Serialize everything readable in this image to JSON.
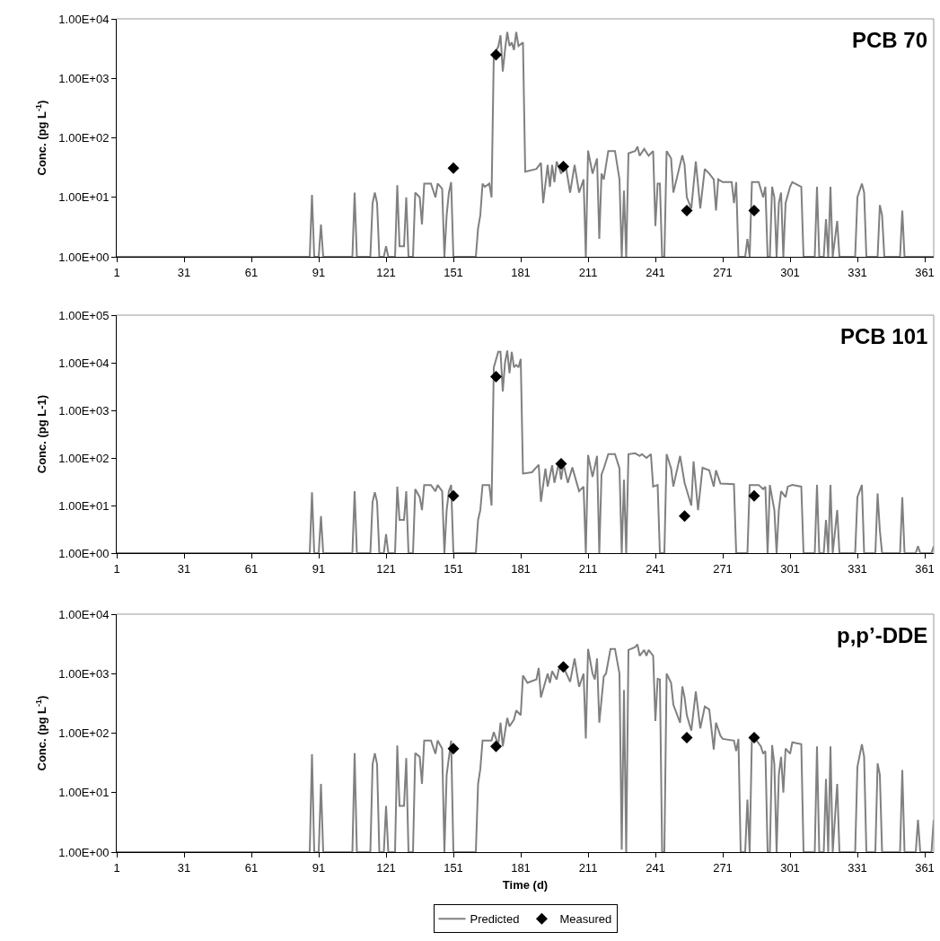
{
  "chart_data": [
    {
      "type": "line",
      "title": "PCB 70",
      "ylabel": "Conc. (pg L$^{-1}$)",
      "log": "y",
      "legend": false,
      "grid": false,
      "xlim": [
        1,
        365
      ],
      "xticks": [
        1,
        31,
        61,
        91,
        121,
        151,
        181,
        211,
        241,
        271,
        301,
        331,
        361
      ],
      "ylim": [
        1,
        10000
      ],
      "yticks": [
        {
          "value": 1,
          "label": "1.00E+00"
        },
        {
          "value": 10,
          "label": "1.00E+01"
        },
        {
          "value": 100,
          "label": "1.00E+02"
        },
        {
          "value": 1000,
          "label": "1.00E+03"
        },
        {
          "value": 10000,
          "label": "1.00E+04"
        }
      ],
      "series": [
        {
          "type": "line",
          "color": "#808080",
          "marker": "none",
          "x": [
            1,
            87,
            88,
            89,
            91,
            92,
            93,
            106,
            107,
            108,
            114,
            115,
            116,
            117,
            118,
            120,
            121,
            122,
            125,
            126,
            127,
            129,
            130,
            131,
            133,
            134,
            136,
            137,
            138,
            141,
            143,
            144,
            146,
            147,
            148,
            149,
            150,
            151,
            161,
            162,
            163,
            164,
            165,
            167,
            168,
            169,
            171,
            172,
            173,
            174,
            175,
            176,
            177,
            178,
            179,
            180,
            182,
            183,
            188,
            190,
            191,
            193,
            194,
            195,
            196,
            197,
            199,
            201,
            203,
            205,
            207,
            209,
            210,
            211,
            213,
            215,
            216,
            217,
            218,
            220,
            223,
            225,
            226,
            227,
            228,
            229,
            232,
            233,
            234,
            236,
            238,
            240,
            241,
            242,
            243,
            244,
            245,
            246,
            248,
            249,
            253,
            254,
            255,
            257,
            259,
            261,
            263,
            265,
            267,
            268,
            269,
            271,
            275,
            276,
            277,
            278,
            281,
            282,
            283,
            284,
            287,
            289,
            290,
            291,
            292,
            293,
            294,
            295,
            296,
            297,
            298,
            299,
            301,
            302,
            306,
            307,
            312,
            313,
            314,
            316,
            317,
            318,
            319,
            320,
            322,
            323,
            330,
            331,
            333,
            334,
            335,
            340,
            341,
            342,
            343,
            350,
            351,
            352,
            365
          ],
          "values": [
            1,
            1,
            11,
            1,
            1,
            3.5,
            1,
            1,
            12,
            1,
            1,
            8,
            12,
            8,
            1,
            1,
            1.5,
            1,
            1,
            16,
            1.5,
            1.5,
            10,
            1,
            1,
            12,
            10,
            3.5,
            17,
            17,
            10,
            17,
            14,
            1,
            5,
            12,
            18,
            1,
            1,
            3,
            5,
            17,
            15,
            17,
            10,
            2500,
            3400,
            5300,
            1300,
            3000,
            6000,
            3500,
            4000,
            3000,
            6000,
            3500,
            4000,
            27,
            30,
            38,
            8,
            35,
            15,
            35,
            18,
            40,
            25,
            35,
            12,
            35,
            12,
            20,
            1,
            61,
            25,
            45,
            2,
            25,
            20,
            60,
            60,
            20,
            1,
            13,
            1,
            55,
            60,
            71,
            50,
            65,
            50,
            60,
            3.3,
            17,
            17,
            1,
            1,
            60,
            45,
            12,
            51,
            35,
            10,
            6.5,
            40,
            6.5,
            30,
            25,
            20,
            6,
            20,
            18,
            18,
            8,
            18,
            1,
            1,
            2,
            1,
            18,
            18,
            10,
            15,
            1,
            1,
            15,
            10,
            1,
            8,
            12,
            1,
            8,
            15,
            18,
            15,
            1,
            1,
            15,
            1,
            1,
            4.3,
            1,
            15,
            1,
            4,
            1,
            1,
            10,
            17,
            12,
            1,
            1,
            7.4,
            5,
            1,
            1,
            6,
            1,
            1
          ]
        },
        {
          "type": "scatter",
          "color": "#000000",
          "marker": "diamond",
          "x": [
            151,
            170,
            200,
            255,
            285
          ],
          "values": [
            31,
            2500,
            33,
            6,
            6
          ]
        }
      ]
    },
    {
      "type": "line",
      "title": "PCB 101",
      "ylabel": "Conc. (pg L-1)",
      "log": "y",
      "legend": false,
      "grid": false,
      "xlim": [
        1,
        365
      ],
      "xticks": [
        1,
        31,
        61,
        91,
        121,
        151,
        181,
        211,
        241,
        271,
        301,
        331,
        361
      ],
      "ylim": [
        1,
        100000
      ],
      "yticks": [
        {
          "value": 1,
          "label": "1.00E+00"
        },
        {
          "value": 10,
          "label": "1.00E+01"
        },
        {
          "value": 100,
          "label": "1.00E+02"
        },
        {
          "value": 1000,
          "label": "1.00E+03"
        },
        {
          "value": 10000,
          "label": "1.00E+04"
        },
        {
          "value": 100000,
          "label": "1.00E+05"
        }
      ],
      "series": [
        {
          "type": "line",
          "color": "#808080",
          "marker": "none",
          "x": [
            1,
            87,
            88,
            89,
            91,
            92,
            93,
            106,
            107,
            108,
            114,
            115,
            116,
            117,
            118,
            120,
            121,
            122,
            125,
            126,
            127,
            129,
            130,
            131,
            133,
            134,
            136,
            137,
            138,
            141,
            143,
            144,
            146,
            147,
            148,
            149,
            150,
            151,
            161,
            162,
            163,
            164,
            167,
            168,
            169,
            171,
            172,
            173,
            174,
            175,
            176,
            177,
            178,
            179,
            180,
            181,
            182,
            186,
            189,
            190,
            192,
            193,
            195,
            196,
            198,
            199,
            200,
            202,
            204,
            207,
            209,
            210,
            211,
            213,
            215,
            216,
            217,
            218,
            220,
            223,
            225,
            226,
            227,
            228,
            229,
            232,
            234,
            235,
            237,
            239,
            240,
            242,
            243,
            245,
            246,
            248,
            249,
            252,
            254,
            257,
            258,
            260,
            262,
            265,
            267,
            268,
            270,
            276,
            277,
            282,
            283,
            287,
            289,
            290,
            291,
            292,
            294,
            295,
            296,
            297,
            299,
            300,
            302,
            306,
            307,
            312,
            313,
            314,
            316,
            317,
            318,
            319,
            320,
            322,
            323,
            330,
            331,
            333,
            334,
            339,
            340,
            341,
            342,
            350,
            351,
            352,
            357,
            358,
            359,
            364,
            365
          ],
          "values": [
            1,
            1,
            19,
            1,
            1,
            6,
            1,
            1,
            20,
            1,
            1,
            12,
            19,
            12,
            1,
            1,
            2.5,
            1,
            1,
            25,
            5,
            5,
            20,
            1,
            1,
            22,
            15,
            8,
            27,
            27,
            20,
            27,
            20,
            1,
            8,
            20,
            27,
            1,
            1,
            5,
            8,
            27,
            27,
            10,
            8000,
            17000,
            17000,
            2500,
            10000,
            18000,
            6000,
            17000,
            8000,
            9000,
            8000,
            12000,
            47,
            50,
            72,
            12,
            60,
            25,
            70,
            30,
            80,
            35,
            75,
            30,
            63,
            20,
            25,
            1,
            115,
            40,
            110,
            1,
            45,
            60,
            120,
            120,
            60,
            1,
            35,
            1,
            120,
            125,
            110,
            120,
            100,
            120,
            25,
            27,
            1,
            1,
            120,
            60,
            25,
            110,
            30,
            10,
            85,
            8,
            62,
            55,
            25,
            55,
            29,
            28,
            1,
            1,
            27,
            27,
            22,
            25,
            1,
            27,
            8,
            1,
            8,
            20,
            15,
            25,
            27,
            25,
            1,
            1,
            27,
            1,
            1,
            5,
            1,
            27,
            1,
            8,
            1,
            1,
            15,
            27,
            1,
            1,
            18,
            3,
            1,
            1,
            15,
            1,
            1,
            1.4,
            1,
            1,
            1.4
          ]
        },
        {
          "type": "scatter",
          "color": "#000000",
          "marker": "diamond",
          "x": [
            151,
            170,
            199,
            254,
            285
          ],
          "values": [
            16,
            5100,
            75,
            6,
            16
          ]
        }
      ]
    },
    {
      "type": "line",
      "title": "p,p’-DDE",
      "xlabel": "Time (d)",
      "ylabel": "Conc. (pg L$^{-1}$)",
      "log": "y",
      "legend": "bottom",
      "grid": false,
      "xlim": [
        1,
        365
      ],
      "xticks": [
        1,
        31,
        61,
        91,
        121,
        151,
        181,
        211,
        241,
        271,
        301,
        331,
        361
      ],
      "ylim": [
        1,
        10000
      ],
      "yticks": [
        {
          "value": 1,
          "label": "1.00E+00"
        },
        {
          "value": 10,
          "label": "1.00E+01"
        },
        {
          "value": 100,
          "label": "1.00E+02"
        },
        {
          "value": 1000,
          "label": "1.00E+03"
        },
        {
          "value": 10000,
          "label": "1.00E+04"
        }
      ],
      "series": [
        {
          "type": "line",
          "name": "Predicted",
          "color": "#808080",
          "marker": "none",
          "x": [
            1,
            87,
            88,
            89,
            91,
            92,
            93,
            106,
            107,
            108,
            114,
            115,
            116,
            117,
            118,
            120,
            121,
            122,
            125,
            126,
            127,
            129,
            130,
            131,
            133,
            134,
            136,
            137,
            138,
            141,
            143,
            144,
            146,
            147,
            148,
            150,
            151,
            161,
            162,
            163,
            164,
            168,
            169,
            171,
            172,
            173,
            175,
            176,
            178,
            179,
            181,
            182,
            184,
            186,
            188,
            189,
            190,
            193,
            194,
            195,
            197,
            198,
            200,
            203,
            205,
            207,
            209,
            210,
            211,
            213,
            214,
            215,
            216,
            218,
            219,
            221,
            223,
            225,
            226,
            227,
            228,
            229,
            232,
            233,
            234,
            236,
            237,
            238,
            240,
            241,
            242,
            243,
            244,
            245,
            246,
            248,
            249,
            252,
            253,
            254,
            255,
            257,
            259,
            261,
            263,
            265,
            267,
            268,
            270,
            271,
            276,
            277,
            278,
            279,
            281,
            282,
            283,
            284,
            285,
            288,
            289,
            290,
            291,
            292,
            293,
            294,
            295,
            296,
            297,
            298,
            299,
            301,
            302,
            306,
            307,
            312,
            313,
            314,
            316,
            317,
            318,
            319,
            320,
            322,
            323,
            330,
            331,
            333,
            334,
            335,
            339,
            340,
            341,
            342,
            350,
            351,
            352,
            357,
            358,
            359,
            364,
            365
          ],
          "values": [
            1,
            1,
            44,
            1,
            1,
            14,
            1,
            1,
            46,
            1,
            1,
            30,
            46,
            30,
            1,
            1,
            6,
            1,
            1,
            62,
            6,
            6,
            38,
            1,
            1,
            46,
            40,
            14,
            75,
            75,
            45,
            75,
            55,
            1,
            20,
            75,
            1,
            1,
            14,
            25,
            75,
            75,
            104,
            63,
            150,
            60,
            180,
            130,
            170,
            240,
            200,
            930,
            700,
            750,
            800,
            1250,
            400,
            1000,
            700,
            1100,
            800,
            1200,
            1300,
            730,
            1800,
            600,
            1000,
            81,
            2600,
            1000,
            800,
            1800,
            150,
            900,
            1000,
            2600,
            2600,
            1000,
            1.1,
            530,
            1,
            2500,
            2800,
            3100,
            2000,
            2500,
            2000,
            2500,
            2000,
            160,
            820,
            800,
            1,
            1,
            1000,
            700,
            300,
            150,
            610,
            400,
            200,
            110,
            500,
            120,
            280,
            250,
            53,
            150,
            90,
            80,
            75,
            50,
            80,
            1,
            1,
            7.6,
            1,
            85,
            85,
            60,
            45,
            50,
            1,
            1,
            63,
            30,
            1,
            20,
            40,
            10,
            55,
            45,
            70,
            65,
            1,
            1,
            60,
            1,
            1,
            17,
            1,
            60,
            1,
            14,
            1,
            1,
            27,
            65,
            40,
            1,
            1,
            31,
            20,
            1,
            1,
            24,
            1,
            1,
            3.5,
            1,
            1,
            3.5
          ]
        },
        {
          "type": "scatter",
          "name": "Measured",
          "color": "#000000",
          "marker": "diamond",
          "x": [
            151,
            170,
            200,
            255,
            285
          ],
          "values": [
            55,
            60,
            1300,
            84,
            84
          ]
        }
      ]
    }
  ]
}
